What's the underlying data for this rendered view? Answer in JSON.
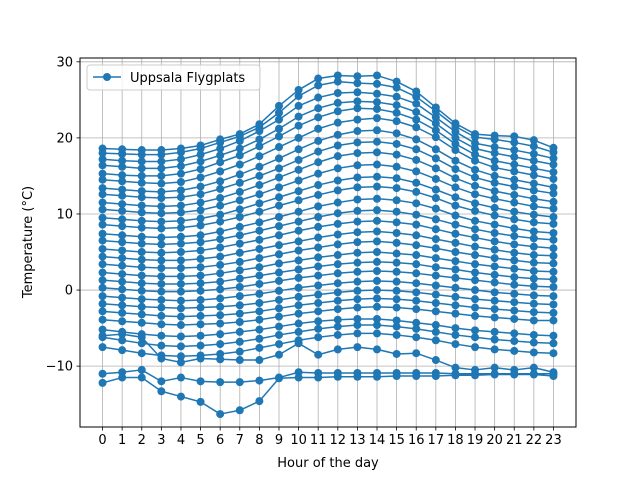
{
  "chart_data": {
    "type": "line",
    "title": "",
    "xlabel": "Hour of the day",
    "ylabel": "Temperature (°C)",
    "x": [
      0,
      1,
      2,
      3,
      4,
      5,
      6,
      7,
      8,
      9,
      10,
      11,
      12,
      13,
      14,
      15,
      16,
      17,
      18,
      19,
      20,
      21,
      22,
      23
    ],
    "x_tick_labels": [
      "0",
      "1",
      "2",
      "3",
      "4",
      "5",
      "6",
      "7",
      "8",
      "9",
      "10",
      "11",
      "12",
      "13",
      "14",
      "15",
      "16",
      "17",
      "18",
      "19",
      "20",
      "21",
      "22",
      "23"
    ],
    "xlim": [
      -1.15,
      24.15
    ],
    "ylim": [
      -18,
      30.5
    ],
    "y_ticks": [
      -10,
      0,
      10,
      20,
      30
    ],
    "y_tick_labels": [
      "−10",
      "0",
      "10",
      "20",
      "30"
    ],
    "grid": true,
    "legend_position": "upper-left",
    "color": "#1f77b4",
    "series": [
      {
        "name": "Uppsala Flygplats",
        "values": [
          18.6,
          18.5,
          18.4,
          18.4,
          18.6,
          19.0,
          19.8,
          20.5,
          21.8,
          24.2,
          26.3,
          27.8,
          28.2,
          28.1,
          28.2,
          27.4,
          26.1,
          24.0,
          21.9,
          20.5,
          20.3,
          20.2,
          19.7,
          18.7
        ]
      },
      {
        "values": [
          18.0,
          17.9,
          17.8,
          17.8,
          18.1,
          18.6,
          19.4,
          20.2,
          21.4,
          23.3,
          25.5,
          26.9,
          27.4,
          27.2,
          27.1,
          26.6,
          25.4,
          23.5,
          21.5,
          20.1,
          19.8,
          19.4,
          18.9,
          18.1
        ]
      },
      {
        "values": [
          17.2,
          17.0,
          16.9,
          16.9,
          17.2,
          17.8,
          18.6,
          19.6,
          20.9,
          22.4,
          24.2,
          25.3,
          25.9,
          26.0,
          25.8,
          25.4,
          24.5,
          22.7,
          20.8,
          19.3,
          18.8,
          18.4,
          17.9,
          17.3
        ]
      },
      {
        "values": [
          16.4,
          16.2,
          16.0,
          16.0,
          16.3,
          16.9,
          17.7,
          18.6,
          19.8,
          21.2,
          22.8,
          23.9,
          24.6,
          24.8,
          24.7,
          24.3,
          23.4,
          21.9,
          20.0,
          18.6,
          18.0,
          17.5,
          17.0,
          16.5
        ]
      },
      {
        "values": [
          15.3,
          15.1,
          15.0,
          15.0,
          15.3,
          15.9,
          16.8,
          17.7,
          18.9,
          20.2,
          21.6,
          22.7,
          23.5,
          23.9,
          23.8,
          23.3,
          22.4,
          21.0,
          19.2,
          17.8,
          17.0,
          16.5,
          16.0,
          15.5
        ]
      },
      {
        "values": [
          14.5,
          14.3,
          14.1,
          14.0,
          14.2,
          14.8,
          15.6,
          16.5,
          17.6,
          18.8,
          20.0,
          21.2,
          22.0,
          22.4,
          22.6,
          22.2,
          21.4,
          20.1,
          18.4,
          17.0,
          16.1,
          15.6,
          15.1,
          14.6
        ]
      },
      {
        "values": [
          13.4,
          13.2,
          13.0,
          12.9,
          13.1,
          13.6,
          14.3,
          15.2,
          16.2,
          17.3,
          18.5,
          19.6,
          20.4,
          20.9,
          21.0,
          20.6,
          19.8,
          18.5,
          17.0,
          15.8,
          15.0,
          14.5,
          14.0,
          13.5
        ]
      },
      {
        "values": [
          12.6,
          12.4,
          12.2,
          12.1,
          12.2,
          12.6,
          13.3,
          14.1,
          15.0,
          16.0,
          17.1,
          18.2,
          19.0,
          19.4,
          19.5,
          19.2,
          18.5,
          17.3,
          15.9,
          14.8,
          14.1,
          13.6,
          13.1,
          12.7
        ]
      },
      {
        "values": [
          11.5,
          11.3,
          11.1,
          11.0,
          11.1,
          11.5,
          12.1,
          12.9,
          13.8,
          14.8,
          15.8,
          16.8,
          17.6,
          18.0,
          18.1,
          17.8,
          17.1,
          16.0,
          14.7,
          13.7,
          13.0,
          12.5,
          12.0,
          11.6
        ]
      },
      {
        "values": [
          10.6,
          10.4,
          10.2,
          10.1,
          10.2,
          10.5,
          11.1,
          11.8,
          12.6,
          13.5,
          14.4,
          15.3,
          16.0,
          16.4,
          16.5,
          16.2,
          15.6,
          14.6,
          13.5,
          12.6,
          12.0,
          11.5,
          11.0,
          10.7
        ]
      },
      {
        "values": [
          9.5,
          9.3,
          9.1,
          9.0,
          9.1,
          9.4,
          9.9,
          10.6,
          11.4,
          12.2,
          13.0,
          13.8,
          14.4,
          14.8,
          14.9,
          14.7,
          14.1,
          13.2,
          12.2,
          11.4,
          10.8,
          10.3,
          9.9,
          9.6
        ]
      },
      {
        "values": [
          8.6,
          8.4,
          8.2,
          8.1,
          8.2,
          8.5,
          9.0,
          9.6,
          10.3,
          11.1,
          11.8,
          12.5,
          13.1,
          13.5,
          13.6,
          13.4,
          12.9,
          12.1,
          11.1,
          10.4,
          9.8,
          9.3,
          8.9,
          8.7
        ]
      },
      {
        "values": [
          7.4,
          7.2,
          7.0,
          6.9,
          7.0,
          7.2,
          7.7,
          8.3,
          8.9,
          9.6,
          10.3,
          11.0,
          11.5,
          11.9,
          12.0,
          11.8,
          11.4,
          10.7,
          9.8,
          9.1,
          8.6,
          8.1,
          7.7,
          7.5
        ]
      },
      {
        "values": [
          6.5,
          6.3,
          6.1,
          6.0,
          6.1,
          6.3,
          6.7,
          7.2,
          7.8,
          8.4,
          9.0,
          9.6,
          10.1,
          10.4,
          10.5,
          10.3,
          9.9,
          9.3,
          8.6,
          8.0,
          7.5,
          7.1,
          6.8,
          6.6
        ]
      },
      {
        "values": [
          5.4,
          5.2,
          5.0,
          4.9,
          5.0,
          5.2,
          5.6,
          6.1,
          6.6,
          7.2,
          7.8,
          8.3,
          8.7,
          9.0,
          9.1,
          8.9,
          8.6,
          8.0,
          7.4,
          6.9,
          6.4,
          6.0,
          5.7,
          5.5
        ]
      },
      {
        "values": [
          4.4,
          4.2,
          4.0,
          3.9,
          3.9,
          4.1,
          4.4,
          4.9,
          5.4,
          5.9,
          6.4,
          6.9,
          7.3,
          7.6,
          7.7,
          7.5,
          7.2,
          6.7,
          6.2,
          5.7,
          5.3,
          4.9,
          4.6,
          4.5
        ]
      },
      {
        "values": [
          3.4,
          3.2,
          3.0,
          2.9,
          2.9,
          3.0,
          3.3,
          3.7,
          4.2,
          4.7,
          5.2,
          5.6,
          6.0,
          6.3,
          6.4,
          6.2,
          5.9,
          5.5,
          5.0,
          4.6,
          4.2,
          3.9,
          3.6,
          3.5
        ]
      },
      {
        "values": [
          2.3,
          2.1,
          1.9,
          1.8,
          1.8,
          1.9,
          2.2,
          2.6,
          3.0,
          3.5,
          3.9,
          4.3,
          4.6,
          4.9,
          5.0,
          4.8,
          4.6,
          4.2,
          3.8,
          3.4,
          3.1,
          2.8,
          2.5,
          2.4
        ]
      },
      {
        "values": [
          1.3,
          1.1,
          0.9,
          0.8,
          0.8,
          0.9,
          1.1,
          1.5,
          1.9,
          2.3,
          2.7,
          3.1,
          3.4,
          3.6,
          3.7,
          3.6,
          3.4,
          3.0,
          2.7,
          2.3,
          2.0,
          1.7,
          1.5,
          1.4
        ]
      },
      {
        "values": [
          0.3,
          0.1,
          -0.1,
          -0.2,
          -0.2,
          -0.1,
          0.1,
          0.4,
          0.8,
          1.2,
          1.6,
          1.9,
          2.2,
          2.4,
          2.5,
          2.4,
          2.2,
          1.9,
          1.6,
          1.3,
          1.0,
          0.7,
          0.5,
          0.4
        ]
      },
      {
        "values": [
          -0.8,
          -1.0,
          -1.2,
          -1.3,
          -1.4,
          -1.3,
          -1.1,
          -0.8,
          -0.5,
          -0.1,
          0.3,
          0.6,
          0.9,
          1.1,
          1.2,
          1.1,
          0.9,
          0.6,
          0.3,
          0.0,
          -0.3,
          -0.5,
          -0.7,
          -0.8
        ]
      },
      {
        "values": [
          -1.8,
          -2.0,
          -2.2,
          -2.3,
          -2.4,
          -2.3,
          -2.2,
          -2.0,
          -1.7,
          -1.3,
          -0.9,
          -0.6,
          -0.3,
          -0.1,
          0.0,
          -0.1,
          -0.3,
          -0.6,
          -0.9,
          -1.2,
          -1.4,
          -1.6,
          -1.8,
          -1.9
        ]
      },
      {
        "values": [
          -2.8,
          -3.0,
          -3.2,
          -3.4,
          -3.5,
          -3.4,
          -3.3,
          -3.1,
          -2.8,
          -2.4,
          -2.0,
          -1.7,
          -1.4,
          -1.2,
          -1.1,
          -1.2,
          -1.4,
          -1.7,
          -2.0,
          -2.3,
          -2.5,
          -2.7,
          -2.9,
          -3.0
        ]
      },
      {
        "values": [
          -3.9,
          -4.1,
          -4.3,
          -4.5,
          -4.6,
          -4.5,
          -4.4,
          -4.2,
          -3.9,
          -3.5,
          -3.1,
          -2.8,
          -2.5,
          -2.3,
          -2.2,
          -2.3,
          -2.5,
          -2.8,
          -3.1,
          -3.4,
          -3.6,
          -3.8,
          -4.0,
          -4.0
        ]
      },
      {
        "values": [
          -5.2,
          -5.5,
          -5.8,
          -6.0,
          -6.1,
          -6.0,
          -5.8,
          -5.5,
          -5.2,
          -4.8,
          -4.4,
          -4.1,
          -3.9,
          -3.8,
          -3.8,
          -4.0,
          -4.3,
          -4.6,
          -5.0,
          -5.3,
          -5.5,
          -5.7,
          -5.9,
          -6.0
        ]
      },
      {
        "values": [
          -6.2,
          -6.6,
          -7.0,
          -7.3,
          -7.4,
          -7.3,
          -7.1,
          -6.8,
          -6.4,
          -5.9,
          -5.5,
          -5.1,
          -4.8,
          -4.6,
          -4.6,
          -4.8,
          -5.1,
          -5.5,
          -5.9,
          -6.2,
          -6.5,
          -6.7,
          -6.9,
          -7.0
        ]
      },
      {
        "values": [
          -7.5,
          -7.9,
          -8.3,
          -8.6,
          -8.7,
          -8.6,
          -8.4,
          -8.1,
          -7.6,
          -7.1,
          -6.6,
          -6.2,
          -5.9,
          -5.7,
          -5.7,
          -5.9,
          -6.2,
          -6.6,
          -7.1,
          -7.5,
          -7.8,
          -8.0,
          -8.2,
          -8.3
        ]
      },
      {
        "values": [
          -6.0,
          -5.8,
          -6.2,
          -9.0,
          -9.5,
          -9.0,
          -9.1,
          -9.2,
          -9.2,
          -8.5,
          -7.0,
          -8.5,
          -7.8,
          -7.5,
          -7.8,
          -8.4,
          -8.3,
          -9.2,
          -10.2,
          -10.5,
          -10.2,
          -10.5,
          -10.2,
          -10.8
        ]
      },
      {
        "values": [
          -11.0,
          -10.8,
          -10.5,
          -12.0,
          -11.5,
          -12.0,
          -12.1,
          -12.1,
          -11.9,
          -11.5,
          -10.8,
          -10.9,
          -10.9,
          -10.9,
          -10.9,
          -10.9,
          -10.9,
          -10.9,
          -11.0,
          -11.0,
          -11.0,
          -11.0,
          -11.0,
          -11.0
        ]
      },
      {
        "values": [
          -12.2,
          -11.5,
          -11.5,
          -13.3,
          -14.0,
          -14.7,
          -16.3,
          -15.8,
          -14.6,
          -11.6,
          -11.5,
          -11.5,
          -11.4,
          -11.4,
          -11.4,
          -11.3,
          -11.3,
          -11.3,
          -11.2,
          -11.2,
          -11.1,
          -11.1,
          -11.1,
          -11.3
        ]
      }
    ]
  }
}
